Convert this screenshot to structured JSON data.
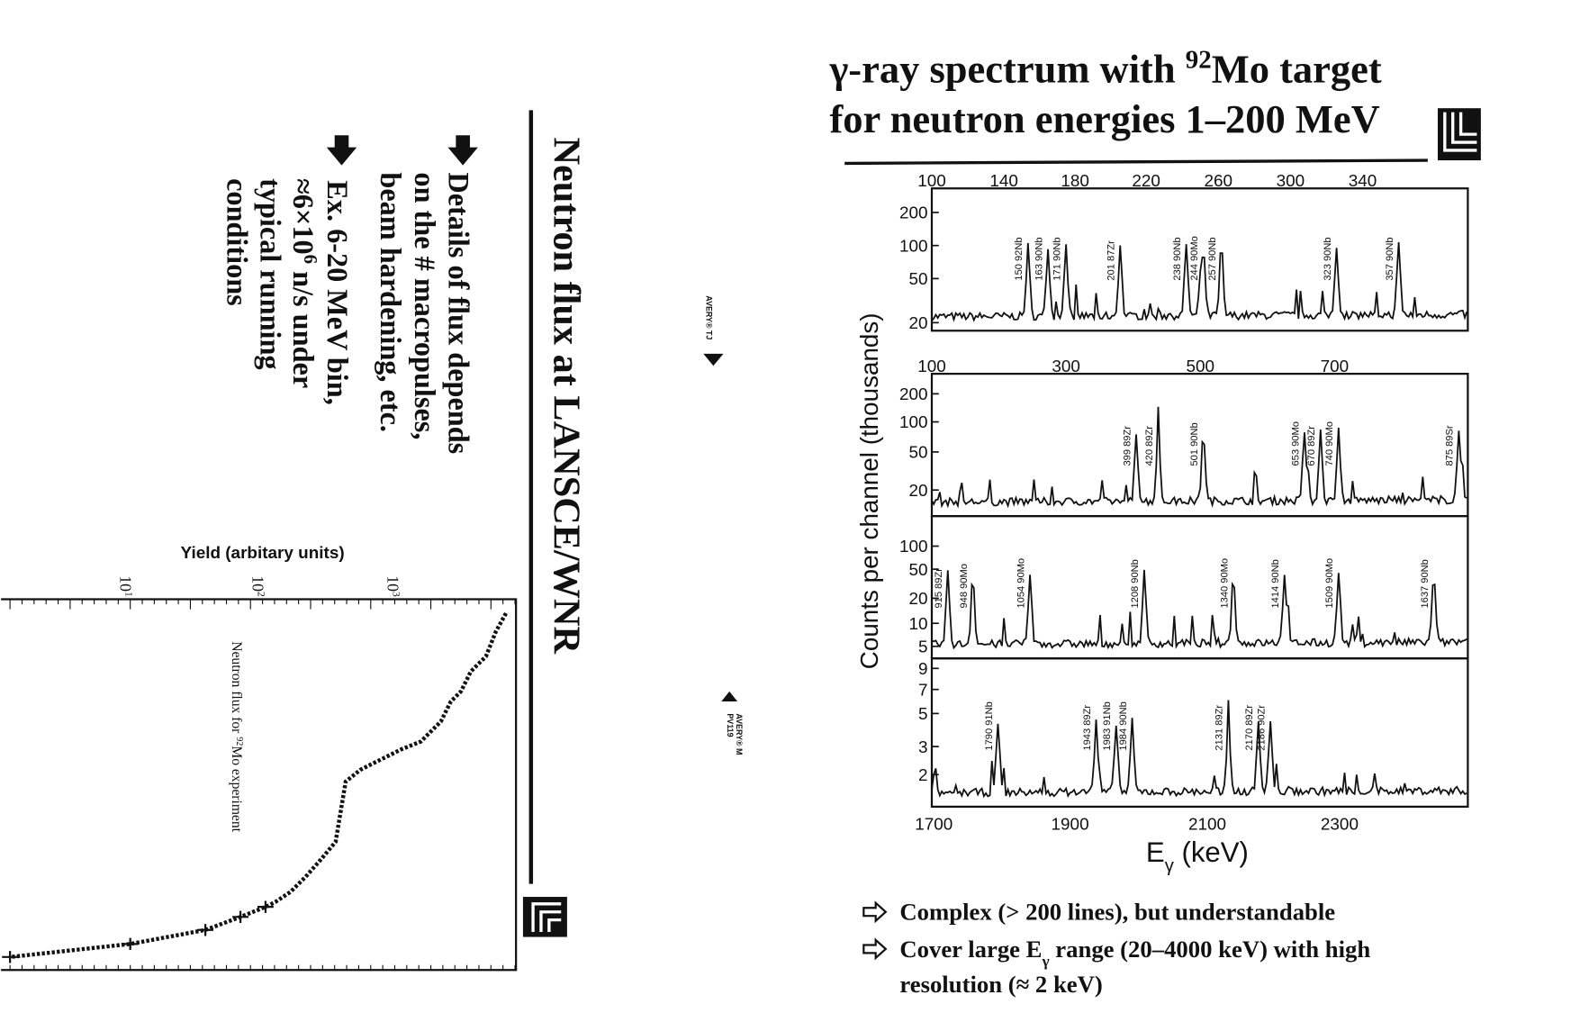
{
  "left_slide": {
    "title": "Neutron flux at LANSCE/WNR",
    "bullet_1": [
      "Details of flux depends",
      "on the # macropulses,",
      "beam hardening, etc."
    ],
    "bullet_2": [
      "Ex. 6-20 MeV bin,",
      [
        "≈6×10",
        "6",
        " n/s under"
      ],
      "typical running",
      "conditions"
    ],
    "flux_chart": {
      "y_label": "Yield (arbitary units)",
      "inner_label": [
        "Neutron flux for ",
        "92",
        "Mo experiment"
      ],
      "y_ticks": [
        [
          "10",
          "1"
        ],
        [
          "10",
          "2"
        ],
        [
          "10",
          "3"
        ]
      ]
    },
    "sticker_1": "AVERY® TJ",
    "sticker_2": [
      "AVERY® M",
      "PV119"
    ]
  },
  "right_slide": {
    "title_line_1": [
      "γ-ray spectrum with ",
      "92",
      "Mo target"
    ],
    "title_line_2": "for neutron energies 1–200 MeV",
    "spectrum": {
      "y_label": "Counts per channel (thousands)",
      "x_label": [
        "E",
        "γ",
        " (keV)"
      ],
      "panels": [
        {
          "top_ticks": [
            100,
            140,
            180,
            220,
            260,
            300,
            340
          ],
          "y_ticks": [
            200,
            100,
            50,
            20
          ],
          "peaks": [
            "150 92Nb",
            "163 90Nb",
            "171 90Nb",
            "201 87Zr",
            "238 90Nb",
            "244 90Mo",
            "257 90Nb",
            "323 90Nb",
            "357 90Nb"
          ]
        },
        {
          "top_ticks": [
            100,
            300,
            500,
            700
          ],
          "y_ticks": [
            200,
            100,
            50,
            20
          ],
          "peaks": [
            "399 89Zr",
            "420 89Zr",
            "501 90Nb",
            "653 90Mo",
            "670 89Zr",
            "740 90Mo",
            "875 89Sr"
          ]
        },
        {
          "y_ticks": [
            100,
            50,
            20,
            10,
            5
          ],
          "peaks": [
            "915 89Zr",
            "948 90Mo",
            "1054 90Mo",
            "1208 90Nb",
            "1340 90Mo",
            "1414 90Nb",
            "1509 90Mo",
            "1637 90Nb"
          ]
        },
        {
          "y_ticks": [
            9,
            7,
            5,
            3,
            2
          ],
          "bottom_ticks": [
            1700,
            1900,
            2100,
            2300
          ],
          "peaks": [
            "1790 91Nb",
            "1943 89Zr",
            "1983 91Nb",
            "1984 90Nb",
            "2131 89Zr",
            "2170 89Zr",
            "2186 90Zr"
          ]
        }
      ]
    },
    "bullets": [
      [
        "Complex (> 200 lines), but understandable"
      ],
      [
        "Cover large E",
        "γ",
        " range (20–4000 keV) with high"
      ],
      [
        "resolution (≈ 2 keV)"
      ]
    ]
  }
}
